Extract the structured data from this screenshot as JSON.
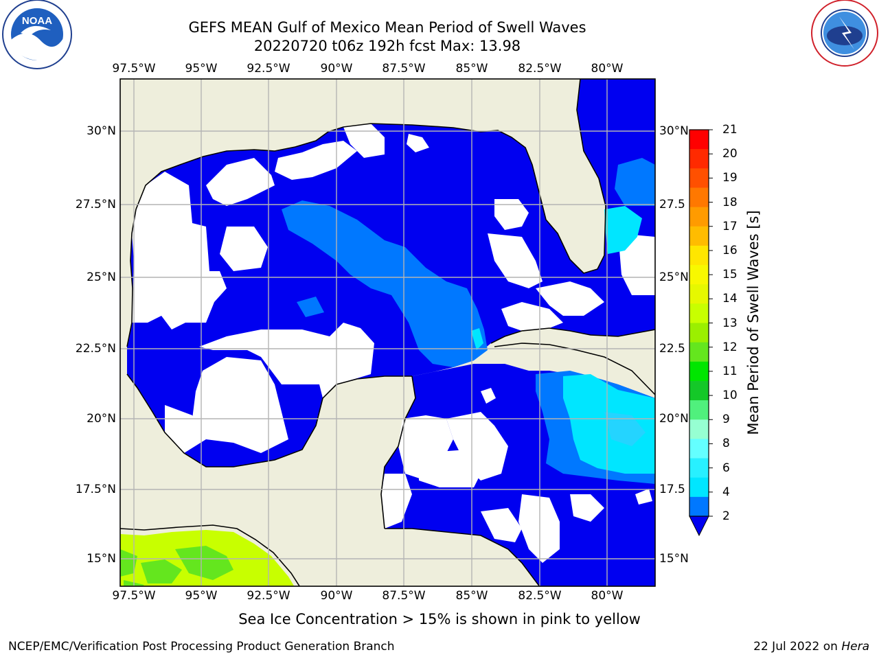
{
  "title_line1": "GEFS MEAN Gulf of Mexico Mean Period of Swell Waves",
  "title_line2": "20220720 t06z 192h fcst   Max: 13.98",
  "lon_labels": [
    "97.5°W",
    "95°W",
    "92.5°W",
    "90°W",
    "87.5°W",
    "85°W",
    "82.5°W",
    "80°W"
  ],
  "lat_labels_left": [
    "30°N",
    "27.5°N",
    "25°N",
    "22.5°N",
    "20°N",
    "17.5°N",
    "15°N"
  ],
  "lat_labels_right": [
    "30°N",
    "27.5",
    "25°N",
    "22.5",
    "20°N",
    "17.5",
    "15°N"
  ],
  "colorbar": {
    "title": "Mean Period of Swell Waves [s]",
    "ticks": [
      "21",
      "20",
      "19",
      "18",
      "17",
      "16",
      "15",
      "14",
      "13",
      "12",
      "11",
      "10",
      "9",
      "8",
      "6",
      "4",
      "2"
    ],
    "colors": [
      "#ff0000",
      "#ff2a00",
      "#ff5000",
      "#ff7800",
      "#ff9b00",
      "#ffbc00",
      "#ffe600",
      "#f8f800",
      "#e6f800",
      "#c8ff00",
      "#9bef00",
      "#64e61e",
      "#00e600",
      "#14c828",
      "#50f07d",
      "#96ffd2",
      "#64ffff",
      "#28f0ff",
      "#00e6ff",
      "#0078ff"
    ],
    "extend_color": "#0000f0"
  },
  "colors": {
    "land": "#eeeedc",
    "ocean_fill": "#0000f0",
    "swell_mid": "#0078ff",
    "swell_high": "#00e6ff",
    "swell_light": "#3cc8ff",
    "ice_yellow": "#c8ff00",
    "ice_green": "#64e61e",
    "grid": "#b4b4b4"
  },
  "note": "Sea Ice Concentration > 15% is shown in pink to yellow",
  "footer_left": "NCEP/EMC/Verification Post Processing Product Generation Branch",
  "footer_date": "22 Jul 2022 on ",
  "footer_machine": "Hera",
  "logo_left": "NOAA",
  "logo_left_ring": "NATIONAL OCEANIC AND ATMOSPHERIC ADMINISTRATION · U.S. DEPARTMENT OF COMMERCE",
  "logo_right_ring": "NATIONAL WEATHER SERVICE"
}
